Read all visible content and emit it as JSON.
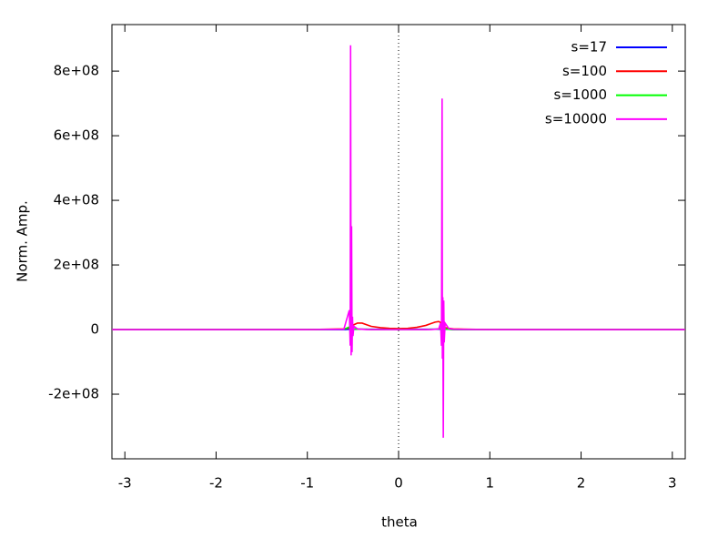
{
  "chart_data": {
    "type": "line",
    "x_label": "theta",
    "y_label": "Norm. Amp.",
    "xlim": [
      -3.14159,
      3.14159
    ],
    "ylim": [
      -400000000,
      944000000
    ],
    "xticks": [
      -3,
      -2,
      -1,
      0,
      1,
      2,
      3
    ],
    "yticks": [
      {
        "value": -200000000,
        "label": "-2e+08"
      },
      0,
      {
        "value": 200000000,
        "label": "2e+08"
      },
      {
        "value": 400000000,
        "label": "4e+08"
      },
      {
        "value": 600000000,
        "label": "6e+08"
      },
      {
        "value": 800000000,
        "label": "8e+08"
      }
    ],
    "x_zeroaxis": true,
    "legend": "top-right",
    "x": [
      -3.14,
      -2,
      -1,
      -0.6,
      -0.54,
      -0.53,
      -0.526,
      -0.52,
      -0.515,
      -0.51,
      -0.505,
      -0.5,
      -0.49,
      -0.45,
      -0.4,
      -0.35,
      -0.3,
      -0.2,
      -0.1,
      0,
      0.1,
      0.2,
      0.3,
      0.35,
      0.4,
      0.44,
      0.46,
      0.47,
      0.477,
      0.48,
      0.485,
      0.49,
      0.495,
      0.5,
      0.51,
      0.55,
      0.6,
      1,
      2,
      3.14
    ],
    "series": [
      {
        "name": "s=17",
        "color": "#0000ff",
        "values": [
          0,
          0,
          0,
          0,
          1000000,
          1000000,
          1000000,
          1000000,
          1000000,
          1000000,
          1000000,
          1000000,
          1000000,
          1000000,
          1000000,
          1000000,
          1000000,
          1000000,
          1000000,
          1000000,
          1000000,
          1000000,
          1000000,
          1000000,
          1000000,
          1000000,
          1000000,
          1000000,
          1000000,
          1000000,
          1000000,
          1000000,
          1000000,
          1000000,
          1000000,
          1000000,
          0,
          0,
          0,
          0
        ]
      },
      {
        "name": "s=100",
        "color": "#ff0000",
        "values": [
          0,
          0,
          0,
          2000000,
          5000000,
          6000000,
          6000000,
          7000000,
          8000000,
          9000000,
          10000000,
          12000000,
          15000000,
          20000000,
          20000000,
          15000000,
          10000000,
          6000000,
          4000000,
          3000000,
          4000000,
          7000000,
          13000000,
          18000000,
          23000000,
          25000000,
          22000000,
          18000000,
          15000000,
          13000000,
          11000000,
          9000000,
          8000000,
          7000000,
          6000000,
          4000000,
          2000000,
          0,
          0,
          0
        ]
      },
      {
        "name": "s=1000",
        "color": "#00ff00",
        "values": [
          0,
          0,
          0,
          1000000,
          8000000,
          -6000000,
          12000000,
          -8000000,
          9000000,
          -5000000,
          4000000,
          -2000000,
          2000000,
          1000000,
          1000000,
          1000000,
          0,
          0,
          0,
          0,
          0,
          0,
          0,
          1000000,
          1000000,
          2000000,
          3000000,
          -5000000,
          10000000,
          -9000000,
          8000000,
          -7000000,
          5000000,
          -3000000,
          2000000,
          1000000,
          0,
          0,
          0,
          0
        ]
      },
      {
        "name": "s=10000",
        "color": "#ff00ff",
        "values": [
          0,
          0,
          0,
          1000000,
          60000000,
          -50000000,
          880000000,
          -80000000,
          320000000,
          -70000000,
          40000000,
          -20000000,
          10000000,
          2000000,
          1000000,
          0,
          0,
          0,
          0,
          0,
          0,
          0,
          0,
          0,
          1000000,
          2000000,
          20000000,
          -50000000,
          715000000,
          -90000000,
          100000000,
          -335000000,
          90000000,
          -40000000,
          20000000,
          3000000,
          1000000,
          0,
          0,
          0
        ]
      }
    ]
  }
}
